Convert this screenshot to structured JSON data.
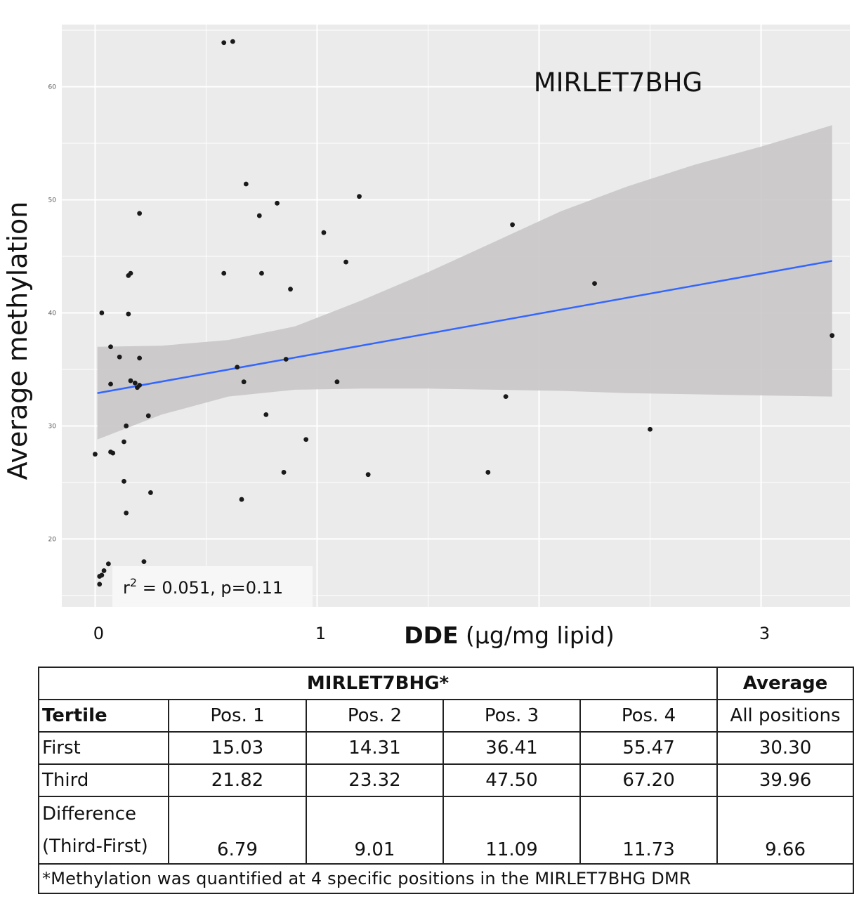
{
  "chart_data": {
    "type": "scatter",
    "title": "MIRLET7BHG",
    "xlabel_bold": "DDE",
    "xlabel_rest": " (µg/mg lipid)",
    "ylabel": "Average methylation",
    "xticks": [
      0,
      1,
      3
    ],
    "yticks": [
      20,
      30,
      40,
      50,
      60
    ],
    "xlim": [
      -0.15,
      3.4
    ],
    "ylim": [
      14,
      65.5
    ],
    "annotation": "r² = 0.051, p=0.11",
    "points": [
      [
        0.0,
        27.5
      ],
      [
        0.02,
        16.0
      ],
      [
        0.02,
        16.7
      ],
      [
        0.03,
        16.8
      ],
      [
        0.04,
        17.2
      ],
      [
        0.06,
        17.8
      ],
      [
        0.03,
        40.0
      ],
      [
        0.07,
        37.0
      ],
      [
        0.07,
        27.7
      ],
      [
        0.08,
        27.6
      ],
      [
        0.07,
        33.7
      ],
      [
        0.11,
        36.1
      ],
      [
        0.13,
        28.6
      ],
      [
        0.14,
        30.0
      ],
      [
        0.13,
        25.1
      ],
      [
        0.14,
        22.3
      ],
      [
        0.15,
        39.9
      ],
      [
        0.15,
        43.3
      ],
      [
        0.16,
        43.5
      ],
      [
        0.16,
        34.0
      ],
      [
        0.18,
        33.8
      ],
      [
        0.19,
        33.4
      ],
      [
        0.2,
        33.6
      ],
      [
        0.2,
        36.0
      ],
      [
        0.2,
        48.8
      ],
      [
        0.22,
        18.0
      ],
      [
        0.24,
        30.9
      ],
      [
        0.25,
        24.1
      ],
      [
        0.58,
        63.9
      ],
      [
        0.62,
        64.0
      ],
      [
        0.58,
        43.5
      ],
      [
        0.64,
        35.2
      ],
      [
        0.66,
        23.5
      ],
      [
        0.67,
        33.9
      ],
      [
        0.68,
        51.4
      ],
      [
        0.74,
        48.6
      ],
      [
        0.75,
        43.5
      ],
      [
        0.77,
        31.0
      ],
      [
        0.82,
        49.7
      ],
      [
        0.85,
        25.9
      ],
      [
        0.86,
        35.9
      ],
      [
        0.88,
        42.1
      ],
      [
        0.95,
        28.8
      ],
      [
        1.03,
        47.1
      ],
      [
        1.09,
        33.9
      ],
      [
        1.13,
        44.5
      ],
      [
        1.19,
        50.3
      ],
      [
        1.23,
        25.7
      ],
      [
        1.77,
        25.9
      ],
      [
        1.85,
        32.6
      ],
      [
        1.88,
        47.8
      ],
      [
        2.25,
        42.6
      ],
      [
        2.5,
        29.7
      ],
      [
        3.32,
        38.0
      ]
    ],
    "fit": {
      "x0": 0.01,
      "y0": 32.9,
      "x1": 3.32,
      "y1": 44.6
    },
    "band": {
      "upper": [
        [
          0.01,
          37.0
        ],
        [
          0.3,
          37.1
        ],
        [
          0.6,
          37.6
        ],
        [
          0.9,
          38.8
        ],
        [
          1.2,
          41.1
        ],
        [
          1.5,
          43.6
        ],
        [
          1.8,
          46.3
        ],
        [
          2.1,
          49.0
        ],
        [
          2.4,
          51.2
        ],
        [
          2.7,
          53.1
        ],
        [
          3.0,
          54.7
        ],
        [
          3.32,
          56.6
        ]
      ],
      "lower": [
        [
          0.01,
          28.8
        ],
        [
          0.3,
          31.0
        ],
        [
          0.6,
          32.6
        ],
        [
          0.9,
          33.2
        ],
        [
          1.2,
          33.3
        ],
        [
          1.5,
          33.3
        ],
        [
          1.8,
          33.2
        ],
        [
          2.1,
          33.1
        ],
        [
          2.4,
          32.9
        ],
        [
          2.7,
          32.8
        ],
        [
          3.0,
          32.7
        ],
        [
          3.32,
          32.6
        ]
      ]
    },
    "colors": {
      "panel": "#ebebeb",
      "grid": "#ffffff",
      "band": "#c9c7c7",
      "line": "#3366ff",
      "point": "#1a1a1a"
    }
  },
  "table": {
    "header_main": "MIRLET7BHG*",
    "header_avg": "Average",
    "col_tertile": "Tertile",
    "cols": [
      "Pos. 1",
      "Pos. 2",
      "Pos. 3",
      "Pos. 4"
    ],
    "col_all": "All positions",
    "rows": [
      {
        "label": "First",
        "values": [
          "15.03",
          "14.31",
          "36.41",
          "55.47"
        ],
        "avg": "30.30"
      },
      {
        "label": "Third",
        "values": [
          "21.82",
          "23.32",
          "47.50",
          "67.20"
        ],
        "avg": "39.96"
      },
      {
        "label": "Difference (Third-First)",
        "values": [
          "6.79",
          "9.01",
          "11.09",
          "11.73"
        ],
        "avg": "9.66"
      }
    ],
    "footnote": "*Methylation was quantified at 4 specific positions in the MIRLET7BHG DMR"
  }
}
